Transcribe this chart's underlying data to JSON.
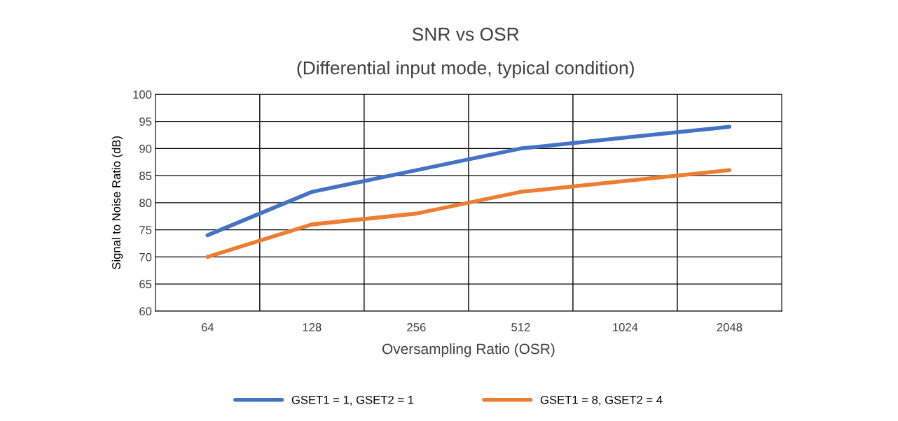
{
  "chart_data": {
    "type": "line",
    "title": "SNR vs OSR",
    "subtitle": "(Differential input mode, typical condition)",
    "xlabel": "Oversampling Ratio (OSR)",
    "ylabel": "Signal to Noise Ratio (dB)",
    "categories": [
      "64",
      "128",
      "256",
      "512",
      "1024",
      "2048"
    ],
    "series": [
      {
        "name": "GSET1 = 1, GSET2 = 1",
        "color": "#4472c4",
        "values": [
          74,
          82,
          86,
          90,
          92,
          94
        ]
      },
      {
        "name": "GSET1 = 8, GSET2 = 4",
        "color": "#ed7d31",
        "values": [
          70,
          76,
          78,
          82,
          84,
          86
        ]
      }
    ],
    "ylim": [
      60,
      100
    ],
    "yticks": [
      60,
      65,
      70,
      75,
      80,
      85,
      90,
      95,
      100
    ],
    "grid": true,
    "legend": "bottom",
    "marker": "none",
    "line_style": "solid"
  }
}
